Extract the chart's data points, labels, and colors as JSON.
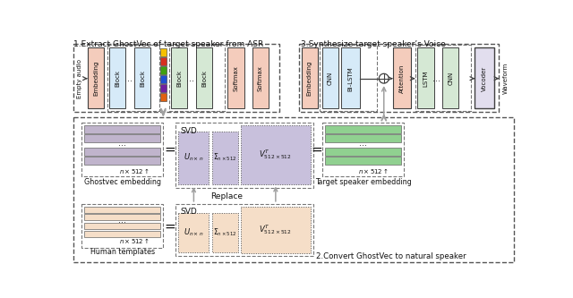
{
  "title1": "1.Extract GhostVec of target speaker from ASR",
  "title3": "3.Synthesize target speaker’s Voice",
  "title2": "2.Convert GhostVec to natural speaker",
  "color_embedding": "#F4CCBC",
  "color_block_blue": "#D6EAF8",
  "color_block_green": "#D5E8D4",
  "color_block_lavender": "#E2DEEE",
  "color_svd_blue": "#C8C0DC",
  "color_svd_orange": "#F5DEC8",
  "color_bar_purple": "#C0B4CC",
  "color_bar_green": "#90D090",
  "color_bar_orange": "#EED0A8",
  "color_dots_yellow": "#F5C000",
  "color_dots_red": "#D83020",
  "color_dots_green": "#40A010",
  "color_dots_blue": "#2050D0",
  "color_dots_purple": "#7020A0",
  "color_dots_orange": "#E06010",
  "bg_white": "#FFFFFF",
  "arrow_gray": "#A0A0A0",
  "edge_dark": "#404040",
  "edge_mid": "#666666",
  "edge_light": "#888888"
}
